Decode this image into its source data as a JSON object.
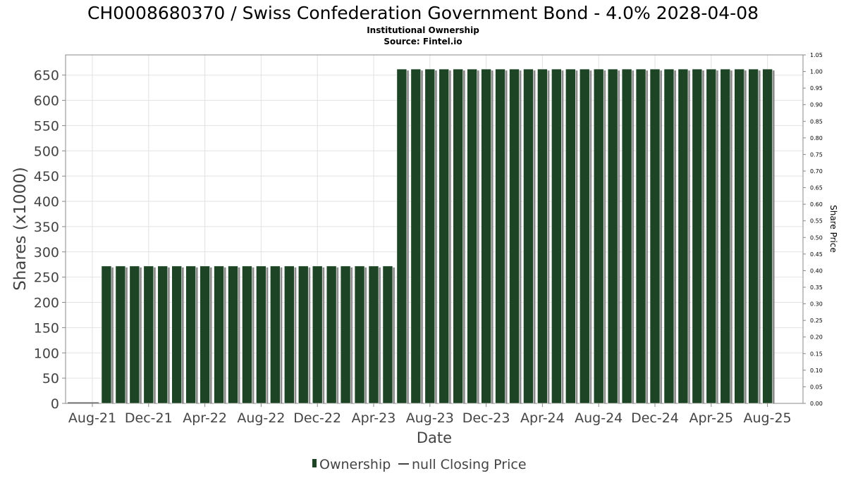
{
  "chart_data": {
    "type": "bar",
    "title": "CH0008680370 / Swiss Confederation Government Bond - 4.0% 2028-04-08",
    "subtitle": "Institutional Ownership",
    "source": "Source: Fintel.io",
    "xlabel": "Date",
    "ylabel": "Shares (x1000)",
    "y2label": "Share Price",
    "ylim": [
      0,
      690
    ],
    "y2lim": [
      0,
      1.05
    ],
    "yticks": [
      0,
      50,
      100,
      150,
      200,
      250,
      300,
      350,
      400,
      450,
      500,
      550,
      600,
      650
    ],
    "y2ticks": [
      "0.00",
      "0.05",
      "0.10",
      "0.15",
      "0.20",
      "0.25",
      "0.30",
      "0.35",
      "0.40",
      "0.45",
      "0.50",
      "0.55",
      "0.60",
      "0.65",
      "0.70",
      "0.75",
      "0.80",
      "0.85",
      "0.90",
      "0.95",
      "1.00",
      "1.05"
    ],
    "xtick_labels": [
      "Aug-21",
      "Dec-21",
      "Apr-22",
      "Aug-22",
      "Dec-22",
      "Apr-23",
      "Aug-23",
      "Dec-23",
      "Apr-24",
      "Aug-24",
      "Dec-24",
      "Apr-25",
      "Aug-25"
    ],
    "grid": true,
    "legend_position": "bottom",
    "series": [
      {
        "name": "Ownership",
        "color": "#1e4426",
        "values": [
          272,
          272,
          272,
          272,
          272,
          272,
          272,
          272,
          272,
          272,
          272,
          272,
          272,
          272,
          272,
          272,
          272,
          272,
          272,
          272,
          272,
          662,
          662,
          662,
          662,
          662,
          662,
          662,
          662,
          662,
          662,
          662,
          662,
          662,
          662,
          662,
          662,
          662,
          662,
          662,
          662,
          662,
          662,
          662,
          662,
          662,
          662,
          662
        ]
      },
      {
        "name": "null Closing Price",
        "color": "#000000",
        "values": []
      }
    ]
  }
}
